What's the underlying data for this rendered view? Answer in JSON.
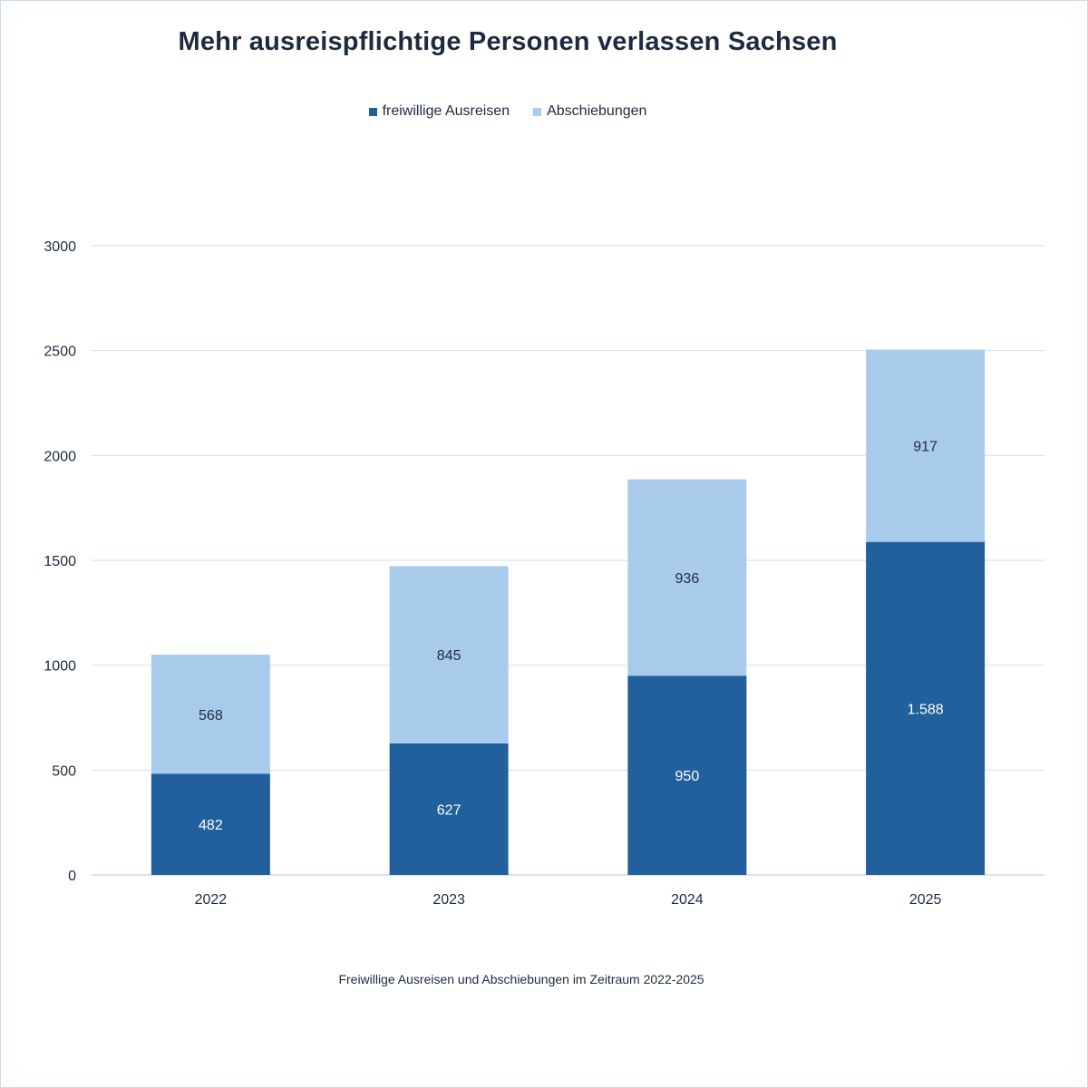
{
  "chart_data": {
    "type": "bar",
    "stacked": true,
    "title": "Mehr ausreispflichtige Personen  verlassen Sachsen",
    "caption": "Freiwillige Ausreisen und Abschiebungen im Zeitraum 2022-2025",
    "categories": [
      "2022",
      "2023",
      "2024",
      "2025"
    ],
    "series": [
      {
        "name": "freiwillige Ausreisen",
        "values": [
          482,
          627,
          950,
          1588
        ],
        "labels": [
          "482",
          "627",
          "950",
          "1.588"
        ],
        "color": "#21609c",
        "label_color": "#ffffff"
      },
      {
        "name": "Abschiebungen",
        "values": [
          568,
          845,
          936,
          917
        ],
        "labels": [
          "568",
          "845",
          "936",
          "917"
        ],
        "color": "#a9cbeb",
        "label_color": "#1c2b3f"
      }
    ],
    "ylim": [
      0,
      3000
    ],
    "yticks": [
      0,
      500,
      1000,
      1500,
      2000,
      2500,
      3000
    ],
    "grid": true,
    "legend_position": "top"
  }
}
